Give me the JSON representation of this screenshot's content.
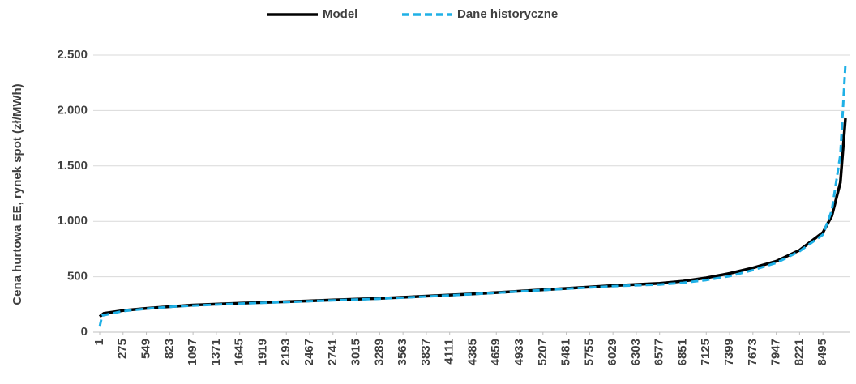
{
  "chart_data": {
    "type": "line",
    "y_label": "Cena hurtowa EE, rynek spot (zł/MWh)",
    "xlim": [
      1,
      8760
    ],
    "xticks": [
      1,
      275,
      549,
      823,
      1097,
      1371,
      1645,
      1919,
      2193,
      2467,
      2741,
      3015,
      3289,
      3563,
      3837,
      4111,
      4385,
      4659,
      4933,
      5207,
      5481,
      5755,
      6029,
      6303,
      6577,
      6851,
      7125,
      7399,
      7673,
      7947,
      8221,
      8495
    ],
    "ylim": [
      0,
      2500
    ],
    "yticks": [
      0,
      500,
      {
        "value": 1000,
        "label": "1.000"
      },
      {
        "value": 1500,
        "label": "1.500"
      },
      {
        "value": 2000,
        "label": "2.000"
      },
      {
        "value": 2500,
        "label": "2.500"
      }
    ],
    "grid": true,
    "legend": "top",
    "series": [
      {
        "name": "Model",
        "color": "#000000",
        "dash": false,
        "x": [
          1,
          50,
          275,
          549,
          823,
          1097,
          1645,
          2193,
          2741,
          3289,
          3837,
          4385,
          4933,
          5481,
          6029,
          6577,
          6851,
          7125,
          7399,
          7673,
          7947,
          8221,
          8495,
          8600,
          8700,
          8760
        ],
        "values": [
          140,
          170,
          195,
          215,
          230,
          245,
          262,
          275,
          290,
          305,
          325,
          345,
          370,
          395,
          420,
          440,
          460,
          490,
          530,
          580,
          640,
          740,
          900,
          1050,
          1350,
          1930
        ]
      },
      {
        "name": "Dane historyczne",
        "color": "#1fb0e6",
        "dash": true,
        "x": [
          1,
          30,
          275,
          549,
          823,
          1097,
          1645,
          2193,
          2741,
          3289,
          3837,
          4385,
          4933,
          5481,
          6029,
          6577,
          6851,
          7125,
          7399,
          7673,
          7947,
          8221,
          8495,
          8600,
          8700,
          8760
        ],
        "values": [
          50,
          150,
          190,
          212,
          228,
          240,
          258,
          272,
          287,
          302,
          322,
          343,
          368,
          392,
          415,
          430,
          445,
          470,
          505,
          560,
          625,
          730,
          880,
          1100,
          1600,
          2420
        ]
      }
    ]
  }
}
